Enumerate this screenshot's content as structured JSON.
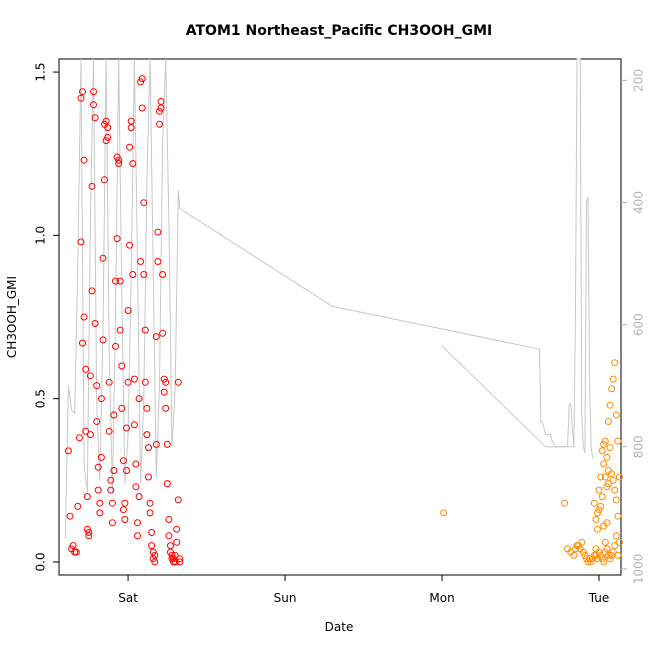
{
  "chart_data": {
    "type": "scatter",
    "title": "ATOM1 Northeast_Pacific CH3OOH_GMI",
    "xlabel": "Date",
    "ylabel": "CH3OOH_GMI",
    "x_ticks": [
      "Sat",
      "Sun",
      "Mon",
      "Tue"
    ],
    "x_tick_days": [
      1,
      2,
      3,
      4
    ],
    "xlim": [
      0.56,
      4.14
    ],
    "y_ticks": [
      "0.0",
      "0.5",
      "1.0",
      "1.5"
    ],
    "y_tick_values": [
      0,
      0.5,
      1.0,
      1.5
    ],
    "ylim": [
      -0.04,
      1.54
    ],
    "y2_ticks": [
      "200",
      "400",
      "600",
      "800",
      "1000"
    ],
    "y2_tick_values": [
      200,
      400,
      600,
      800,
      1000
    ],
    "y2lim": [
      1010,
      165
    ],
    "y2_reversed": true,
    "grid": false,
    "colors": {
      "series_1": "#ff0000",
      "series_2": "#ff8c00",
      "pressure_line": "#c8c8c8"
    },
    "series": [
      {
        "values": [
          [
            0.62,
            0.34
          ],
          [
            0.63,
            0.14
          ],
          [
            0.64,
            0.04
          ],
          [
            0.65,
            0.05
          ],
          [
            0.66,
            0.03
          ],
          [
            0.67,
            0.03
          ],
          [
            0.68,
            0.17
          ],
          [
            0.69,
            0.38
          ],
          [
            0.7,
            0.98
          ],
          [
            0.71,
            0.67
          ],
          [
            0.7,
            1.42
          ],
          [
            0.71,
            1.44
          ],
          [
            0.72,
            1.23
          ],
          [
            0.72,
            0.75
          ],
          [
            0.73,
            0.59
          ],
          [
            0.73,
            0.4
          ],
          [
            0.74,
            0.2
          ],
          [
            0.74,
            0.1
          ],
          [
            0.75,
            0.08
          ],
          [
            0.75,
            0.09
          ],
          [
            0.76,
            0.39
          ],
          [
            0.76,
            0.57
          ],
          [
            0.77,
            0.83
          ],
          [
            0.77,
            1.15
          ],
          [
            0.78,
            1.4
          ],
          [
            0.78,
            1.44
          ],
          [
            0.79,
            1.36
          ],
          [
            0.79,
            0.73
          ],
          [
            0.8,
            0.54
          ],
          [
            0.8,
            0.43
          ],
          [
            0.81,
            0.29
          ],
          [
            0.81,
            0.22
          ],
          [
            0.82,
            0.18
          ],
          [
            0.82,
            0.15
          ],
          [
            0.83,
            0.32
          ],
          [
            0.83,
            0.5
          ],
          [
            0.84,
            0.68
          ],
          [
            0.84,
            0.93
          ],
          [
            0.85,
            1.17
          ],
          [
            0.85,
            1.34
          ],
          [
            0.86,
            1.29
          ],
          [
            0.86,
            1.35
          ],
          [
            0.87,
            1.33
          ],
          [
            0.87,
            1.3
          ],
          [
            0.88,
            0.55
          ],
          [
            0.88,
            0.4
          ],
          [
            0.89,
            0.25
          ],
          [
            0.89,
            0.22
          ],
          [
            0.9,
            0.18
          ],
          [
            0.9,
            0.12
          ],
          [
            0.91,
            0.28
          ],
          [
            0.91,
            0.45
          ],
          [
            0.92,
            0.66
          ],
          [
            0.92,
            0.86
          ],
          [
            0.93,
            0.99
          ],
          [
            0.93,
            1.24
          ],
          [
            0.94,
            1.23
          ],
          [
            0.94,
            1.22
          ],
          [
            0.95,
            0.86
          ],
          [
            0.95,
            0.71
          ],
          [
            0.96,
            0.6
          ],
          [
            0.96,
            0.47
          ],
          [
            0.97,
            0.31
          ],
          [
            0.97,
            0.16
          ],
          [
            0.98,
            0.13
          ],
          [
            0.98,
            0.18
          ],
          [
            0.99,
            0.28
          ],
          [
            0.99,
            0.41
          ],
          [
            1.0,
            0.55
          ],
          [
            1.0,
            0.77
          ],
          [
            1.01,
            0.97
          ],
          [
            1.01,
            1.27
          ],
          [
            1.02,
            1.35
          ],
          [
            1.02,
            1.33
          ],
          [
            1.03,
            1.22
          ],
          [
            1.03,
            0.88
          ],
          [
            1.04,
            0.56
          ],
          [
            1.04,
            0.42
          ],
          [
            1.05,
            0.3
          ],
          [
            1.05,
            0.23
          ],
          [
            1.06,
            0.12
          ],
          [
            1.06,
            0.08
          ],
          [
            1.07,
            0.2
          ],
          [
            1.07,
            0.5
          ],
          [
            1.08,
            0.92
          ],
          [
            1.08,
            1.47
          ],
          [
            1.09,
            1.48
          ],
          [
            1.09,
            1.39
          ],
          [
            1.1,
            1.1
          ],
          [
            1.1,
            0.88
          ],
          [
            1.11,
            0.71
          ],
          [
            1.11,
            0.55
          ],
          [
            1.12,
            0.47
          ],
          [
            1.12,
            0.39
          ],
          [
            1.13,
            0.35
          ],
          [
            1.13,
            0.26
          ],
          [
            1.14,
            0.18
          ],
          [
            1.14,
            0.15
          ],
          [
            1.15,
            0.09
          ],
          [
            1.15,
            0.05
          ],
          [
            1.16,
            0.03
          ],
          [
            1.16,
            0.01
          ],
          [
            1.17,
            0.0
          ],
          [
            1.17,
            0.02
          ],
          [
            1.18,
            0.36
          ],
          [
            1.18,
            0.69
          ],
          [
            1.19,
            0.92
          ],
          [
            1.19,
            1.01
          ],
          [
            1.2,
            1.34
          ],
          [
            1.2,
            1.38
          ],
          [
            1.21,
            1.41
          ],
          [
            1.21,
            1.39
          ],
          [
            1.22,
            0.88
          ],
          [
            1.22,
            0.7
          ],
          [
            1.23,
            0.56
          ],
          [
            1.23,
            0.52
          ],
          [
            1.24,
            0.55
          ],
          [
            1.24,
            0.47
          ],
          [
            1.25,
            0.36
          ],
          [
            1.25,
            0.24
          ],
          [
            1.26,
            0.13
          ],
          [
            1.26,
            0.08
          ],
          [
            1.27,
            0.05
          ],
          [
            1.27,
            0.03
          ],
          [
            1.28,
            0.02
          ],
          [
            1.28,
            0.01
          ],
          [
            1.29,
            0.0
          ],
          [
            1.29,
            0.01
          ],
          [
            1.3,
            0.0
          ],
          [
            1.3,
            0.02
          ],
          [
            1.31,
            0.06
          ],
          [
            1.31,
            0.1
          ],
          [
            1.32,
            0.19
          ],
          [
            1.32,
            0.55
          ],
          [
            1.33,
            0.0
          ],
          [
            1.33,
            0.01
          ]
        ]
      },
      {
        "values": [
          [
            3.01,
            0.15
          ],
          [
            3.78,
            0.18
          ],
          [
            3.8,
            0.04
          ],
          [
            3.82,
            0.03
          ],
          [
            3.84,
            0.02
          ],
          [
            3.85,
            0.04
          ],
          [
            3.86,
            0.05
          ],
          [
            3.87,
            0.05
          ],
          [
            3.88,
            0.04
          ],
          [
            3.89,
            0.06
          ],
          [
            3.9,
            0.03
          ],
          [
            3.91,
            0.02
          ],
          [
            3.92,
            0.01
          ],
          [
            3.93,
            0.0
          ],
          [
            3.94,
            0.01
          ],
          [
            3.95,
            0.0
          ],
          [
            3.96,
            0.01
          ],
          [
            3.97,
            0.02
          ],
          [
            3.98,
            0.04
          ],
          [
            3.99,
            0.1
          ],
          [
            4.0,
            0.16
          ],
          [
            3.99,
            0.15
          ],
          [
            3.98,
            0.13
          ],
          [
            3.97,
            0.18
          ],
          [
            4.0,
            0.22
          ],
          [
            4.01,
            0.26
          ],
          [
            4.02,
            0.34
          ],
          [
            4.03,
            0.36
          ],
          [
            4.04,
            0.37
          ],
          [
            4.05,
            0.32
          ],
          [
            4.06,
            0.24
          ],
          [
            4.05,
            0.23
          ],
          [
            4.04,
            0.26
          ],
          [
            4.03,
            0.3
          ],
          [
            4.02,
            0.2
          ],
          [
            4.01,
            0.17
          ],
          [
            4.03,
            0.11
          ],
          [
            4.04,
            0.06
          ],
          [
            4.05,
            0.04
          ],
          [
            4.06,
            0.02
          ],
          [
            4.07,
            0.01
          ],
          [
            4.08,
            0.02
          ],
          [
            4.09,
            0.03
          ],
          [
            4.1,
            0.05
          ],
          [
            4.11,
            0.08
          ],
          [
            4.12,
            0.14
          ],
          [
            4.11,
            0.19
          ],
          [
            4.1,
            0.22
          ],
          [
            4.09,
            0.25
          ],
          [
            4.08,
            0.27
          ],
          [
            4.07,
            0.35
          ],
          [
            4.06,
            0.28
          ],
          [
            4.05,
            0.12
          ],
          [
            4.04,
            0.03
          ],
          [
            4.03,
            0.0
          ],
          [
            4.02,
            0.01
          ],
          [
            4.01,
            0.02
          ],
          [
            4.0,
            0.03
          ],
          [
            3.99,
            0.01
          ],
          [
            3.98,
            0.02
          ],
          [
            4.06,
            0.43
          ],
          [
            4.07,
            0.48
          ],
          [
            4.08,
            0.53
          ],
          [
            4.09,
            0.56
          ],
          [
            4.1,
            0.61
          ],
          [
            4.11,
            0.45
          ],
          [
            4.12,
            0.37
          ],
          [
            4.13,
            0.26
          ],
          [
            4.13,
            0.06
          ],
          [
            4.12,
            0.02
          ]
        ]
      }
    ],
    "pressure_line": [
      [
        0.6,
        950
      ],
      [
        0.62,
        700
      ],
      [
        0.64,
        740
      ],
      [
        0.66,
        745
      ],
      [
        0.68,
        500
      ],
      [
        0.7,
        165
      ],
      [
        0.72,
        830
      ],
      [
        0.74,
        875
      ],
      [
        0.76,
        430
      ],
      [
        0.78,
        165
      ],
      [
        0.8,
        730
      ],
      [
        0.82,
        855
      ],
      [
        0.84,
        610
      ],
      [
        0.86,
        165
      ],
      [
        0.88,
        640
      ],
      [
        0.9,
        875
      ],
      [
        0.92,
        590
      ],
      [
        0.94,
        165
      ],
      [
        0.96,
        550
      ],
      [
        0.98,
        860
      ],
      [
        1.0,
        780
      ],
      [
        1.02,
        520
      ],
      [
        1.04,
        165
      ],
      [
        1.06,
        500
      ],
      [
        1.08,
        860
      ],
      [
        1.1,
        720
      ],
      [
        1.12,
        360
      ],
      [
        1.14,
        165
      ],
      [
        1.16,
        510
      ],
      [
        1.18,
        850
      ],
      [
        1.2,
        700
      ],
      [
        1.22,
        300
      ],
      [
        1.24,
        165
      ],
      [
        1.26,
        430
      ],
      [
        1.28,
        800
      ],
      [
        1.3,
        700
      ],
      [
        1.32,
        380
      ],
      [
        1.33,
        410
      ],
      [
        2.3,
        570
      ],
      [
        3.62,
        640
      ],
      [
        3.63,
        760
      ],
      [
        3.64,
        760
      ],
      [
        3.66,
        780
      ],
      [
        3.69,
        780
      ],
      [
        3.7,
        790
      ],
      [
        3.72,
        800
      ],
      [
        3.75,
        800
      ],
      [
        3.8,
        800
      ],
      [
        3.81,
        730
      ],
      [
        3.82,
        730
      ],
      [
        3.83,
        770
      ],
      [
        3.84,
        800
      ],
      [
        3.85,
        580
      ],
      [
        3.86,
        165
      ],
      [
        3.87,
        165
      ],
      [
        3.88,
        165
      ],
      [
        3.89,
        750
      ],
      [
        3.9,
        800
      ],
      [
        3.91,
        810
      ],
      [
        3.92,
        400
      ],
      [
        3.93,
        390
      ],
      [
        3.94,
        700
      ],
      [
        3.95,
        800
      ],
      [
        3.96,
        820
      ]
    ],
    "pressure_line_2": [
      [
        3.0,
        635
      ],
      [
        3.62,
        790
      ],
      [
        3.66,
        800
      ],
      [
        3.85,
        800
      ]
    ]
  }
}
